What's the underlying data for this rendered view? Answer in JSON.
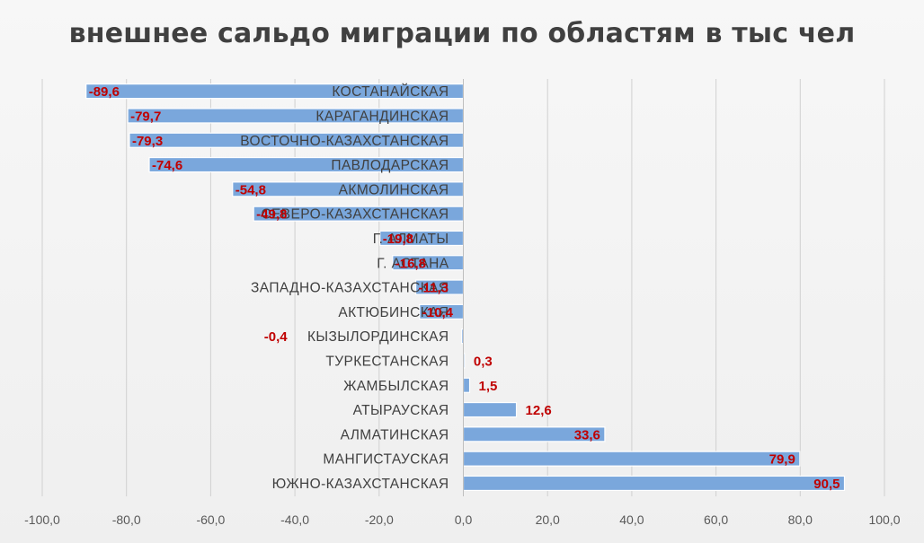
{
  "chart_data": {
    "type": "bar",
    "orientation": "horizontal",
    "title": "внешнее сальдо миграции по областям в тыс чел",
    "xlabel": "",
    "ylabel": "",
    "xlim": [
      -100,
      100
    ],
    "x_ticks": [
      -100,
      -80,
      -60,
      -40,
      -20,
      0,
      20,
      40,
      60,
      80,
      100
    ],
    "x_tick_labels": [
      "-100,0",
      "-80,0",
      "-60,0",
      "-40,0",
      "-20,0",
      "0,0",
      "20,0",
      "40,0",
      "60,0",
      "80,0",
      "100,0"
    ],
    "grid": true,
    "legend": "none",
    "bar_color": "#7aa7dc",
    "label_color": "#c00000",
    "categories": [
      "КОСТАНАЙСКАЯ",
      "КАРАГАНДИНСКАЯ",
      "ВОСТОЧНО-КАЗАХСТАНСКАЯ",
      "ПАВЛОДАРСКАЯ",
      "АКМОЛИНСКАЯ",
      "СЕВЕРО-КАЗАХСТАНСКАЯ",
      "Г. АЛМАТЫ",
      "Г. АСТАНА",
      "ЗАПАДНО-КАЗАХСТАНСКАЯ",
      "АКТЮБИНСКАЯ",
      "КЫЗЫЛОРДИНСКАЯ",
      "ТУРКЕСТАНСКАЯ",
      "ЖАМБЫЛСКАЯ",
      "АТЫРАУСКАЯ",
      "АЛМАТИНСКАЯ",
      "МАНГИСТАУСКАЯ",
      "ЮЖНО-КАЗАХСТАНСКАЯ"
    ],
    "values": [
      -89.6,
      -79.7,
      -79.3,
      -74.6,
      -54.8,
      -49.8,
      -19.8,
      -16.8,
      -11.3,
      -10.4,
      -0.4,
      0.3,
      1.5,
      12.6,
      33.6,
      79.9,
      90.5
    ],
    "value_labels": [
      "-89,6",
      "-79,7",
      "-79,3",
      "-74,6",
      "-54,8",
      "-49,8",
      "-19,8",
      "-16,8",
      "-11,3",
      "-10,4",
      "-0,4",
      "0,3",
      "1,5",
      "12,6",
      "33,6",
      "79,9",
      "90,5"
    ]
  }
}
